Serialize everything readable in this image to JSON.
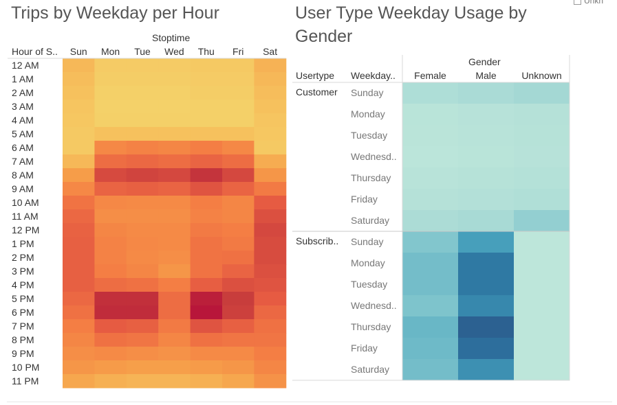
{
  "legend_stub": {
    "text": "Unkn"
  },
  "charts": [
    {
      "title": "Trips by Weekday per Hour",
      "column_header": "Stoptime",
      "row_header": "Hour of S..",
      "columns": [
        "Sun",
        "Mon",
        "Tue",
        "Wed",
        "Thu",
        "Fri",
        "Sat"
      ],
      "rows": [
        "12 AM",
        "1 AM",
        "2 AM",
        "3 AM",
        "4 AM",
        "5 AM",
        "6 AM",
        "7 AM",
        "8 AM",
        "9 AM",
        "10 AM",
        "11 AM",
        "12 PM",
        "1 PM",
        "2 PM",
        "3 PM",
        "4 PM",
        "5 PM",
        "6 PM",
        "7 PM",
        "8 PM",
        "9 PM",
        "10 PM",
        "11 PM"
      ]
    },
    {
      "title": "User Type Weekday Usage by Gender",
      "column_header": "Gender",
      "row_headers": [
        "Usertype",
        "Weekday.."
      ],
      "columns": [
        "Female",
        "Male",
        "Unknown"
      ],
      "usertypes": [
        "Customer",
        "Subscrib.."
      ],
      "weekdays": [
        "Sunday",
        "Monday",
        "Tuesday",
        "Wednesd..",
        "Thursday",
        "Friday",
        "Saturday"
      ]
    }
  ],
  "chart_data": [
    {
      "type": "heatmap",
      "title": "Trips by Weekday per Hour",
      "x": [
        "Sun",
        "Mon",
        "Tue",
        "Wed",
        "Thu",
        "Fri",
        "Sat"
      ],
      "y": [
        "12 AM",
        "1 AM",
        "2 AM",
        "3 AM",
        "4 AM",
        "5 AM",
        "6 AM",
        "7 AM",
        "8 AM",
        "9 AM",
        "10 AM",
        "11 AM",
        "12 PM",
        "1 PM",
        "2 PM",
        "3 PM",
        "4 PM",
        "5 PM",
        "6 PM",
        "7 PM",
        "8 PM",
        "9 PM",
        "10 PM",
        "11 PM"
      ],
      "xlabel": "Stoptime",
      "ylabel": "Hour of S..",
      "color_scale": [
        "#f3d66d",
        "#f6c45f",
        "#f6a04a",
        "#f47e44",
        "#e55a42",
        "#c63a3c",
        "#b8163a"
      ],
      "values": [
        [
          0.22,
          0.1,
          0.1,
          0.1,
          0.12,
          0.12,
          0.25
        ],
        [
          0.2,
          0.08,
          0.08,
          0.08,
          0.1,
          0.1,
          0.22
        ],
        [
          0.18,
          0.06,
          0.06,
          0.06,
          0.08,
          0.08,
          0.2
        ],
        [
          0.16,
          0.05,
          0.05,
          0.05,
          0.06,
          0.06,
          0.18
        ],
        [
          0.14,
          0.06,
          0.06,
          0.06,
          0.06,
          0.06,
          0.16
        ],
        [
          0.12,
          0.18,
          0.18,
          0.18,
          0.18,
          0.18,
          0.14
        ],
        [
          0.12,
          0.45,
          0.48,
          0.46,
          0.5,
          0.45,
          0.12
        ],
        [
          0.22,
          0.58,
          0.6,
          0.58,
          0.62,
          0.58,
          0.28
        ],
        [
          0.35,
          0.75,
          0.78,
          0.76,
          0.86,
          0.76,
          0.38
        ],
        [
          0.45,
          0.62,
          0.64,
          0.62,
          0.7,
          0.62,
          0.52
        ],
        [
          0.55,
          0.45,
          0.44,
          0.44,
          0.5,
          0.46,
          0.66
        ],
        [
          0.6,
          0.42,
          0.42,
          0.42,
          0.48,
          0.46,
          0.72
        ],
        [
          0.63,
          0.46,
          0.44,
          0.44,
          0.52,
          0.5,
          0.76
        ],
        [
          0.64,
          0.48,
          0.45,
          0.44,
          0.55,
          0.52,
          0.74
        ],
        [
          0.64,
          0.48,
          0.44,
          0.42,
          0.55,
          0.56,
          0.74
        ],
        [
          0.64,
          0.5,
          0.46,
          0.38,
          0.55,
          0.62,
          0.72
        ],
        [
          0.64,
          0.58,
          0.56,
          0.5,
          0.65,
          0.72,
          0.7
        ],
        [
          0.6,
          0.88,
          0.88,
          0.58,
          0.96,
          0.82,
          0.66
        ],
        [
          0.56,
          0.9,
          0.9,
          0.58,
          1.0,
          0.8,
          0.6
        ],
        [
          0.5,
          0.66,
          0.64,
          0.52,
          0.7,
          0.64,
          0.56
        ],
        [
          0.46,
          0.56,
          0.54,
          0.46,
          0.56,
          0.54,
          0.54
        ],
        [
          0.42,
          0.44,
          0.42,
          0.4,
          0.44,
          0.44,
          0.5
        ],
        [
          0.38,
          0.36,
          0.34,
          0.34,
          0.36,
          0.38,
          0.46
        ],
        [
          0.3,
          0.26,
          0.24,
          0.24,
          0.26,
          0.3,
          0.4
        ]
      ]
    },
    {
      "type": "heatmap",
      "title": "User Type Weekday Usage by Gender",
      "x": [
        "Female",
        "Male",
        "Unknown"
      ],
      "xlabel": "Gender",
      "y_groups": [
        "Customer",
        "Subscrib.."
      ],
      "y": [
        "Sunday",
        "Monday",
        "Tuesday",
        "Wednesd..",
        "Thursday",
        "Friday",
        "Saturday"
      ],
      "ylabel": "Usertype / Weekday..",
      "color_scale": [
        "#bde6da",
        "#a8dad5",
        "#7ec4cc",
        "#4aa3bd",
        "#2f7ca6",
        "#2b5a8c"
      ],
      "values": {
        "Customer": [
          [
            0.14,
            0.18,
            0.22
          ],
          [
            0.04,
            0.06,
            0.08
          ],
          [
            0.03,
            0.05,
            0.07
          ],
          [
            0.02,
            0.04,
            0.06
          ],
          [
            0.05,
            0.07,
            0.09
          ],
          [
            0.08,
            0.1,
            0.12
          ],
          [
            0.16,
            0.2,
            0.3
          ]
        ],
        "Subscrib..": [
          [
            0.38,
            0.62,
            0.0
          ],
          [
            0.44,
            0.82,
            0.0
          ],
          [
            0.44,
            0.82,
            0.0
          ],
          [
            0.4,
            0.74,
            0.0
          ],
          [
            0.48,
            0.96,
            0.0
          ],
          [
            0.46,
            0.88,
            0.0
          ],
          [
            0.44,
            0.7,
            0.0
          ]
        ]
      }
    }
  ]
}
